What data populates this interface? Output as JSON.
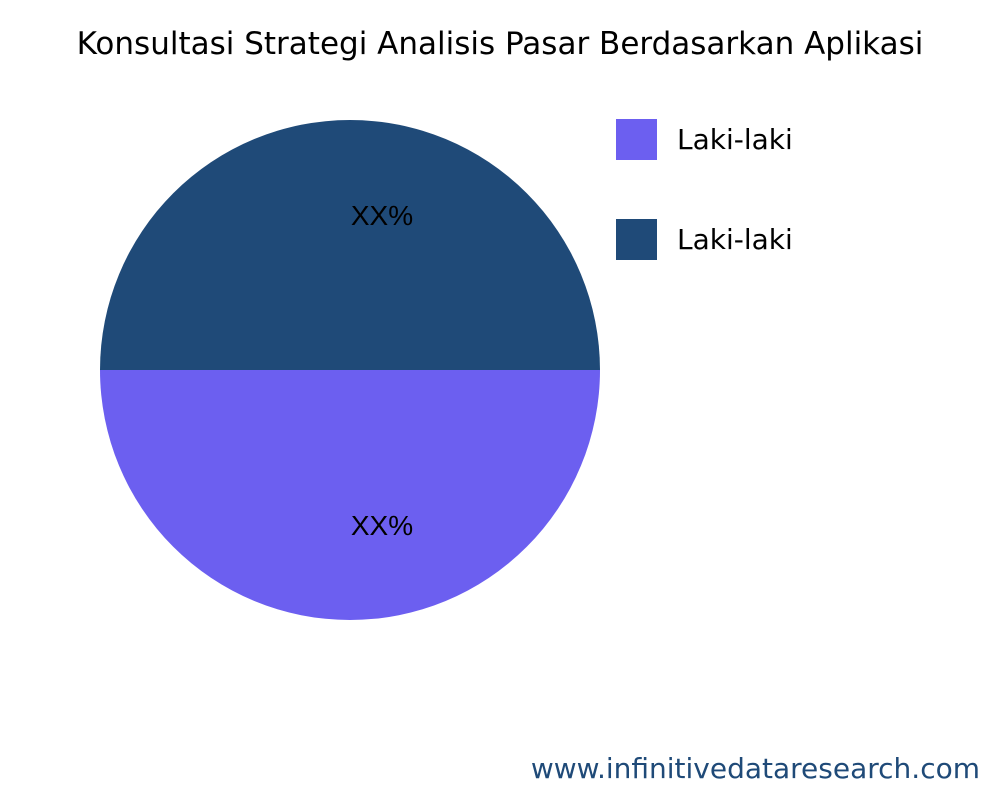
{
  "chart_data": {
    "type": "pie",
    "title": "Konsultasi Strategi Analisis Pasar Berdasarkan Aplikasi",
    "slices": [
      {
        "label": "Laki-laki",
        "value": 50,
        "data_label": "XX%",
        "color": "#6c5ff0"
      },
      {
        "label": "Laki-laki",
        "value": 50,
        "data_label": "XX%",
        "color": "#1f4a78"
      }
    ],
    "legend_position": "top-right"
  },
  "footer": {
    "watermark": "www.infinitivedataresearch.com"
  }
}
